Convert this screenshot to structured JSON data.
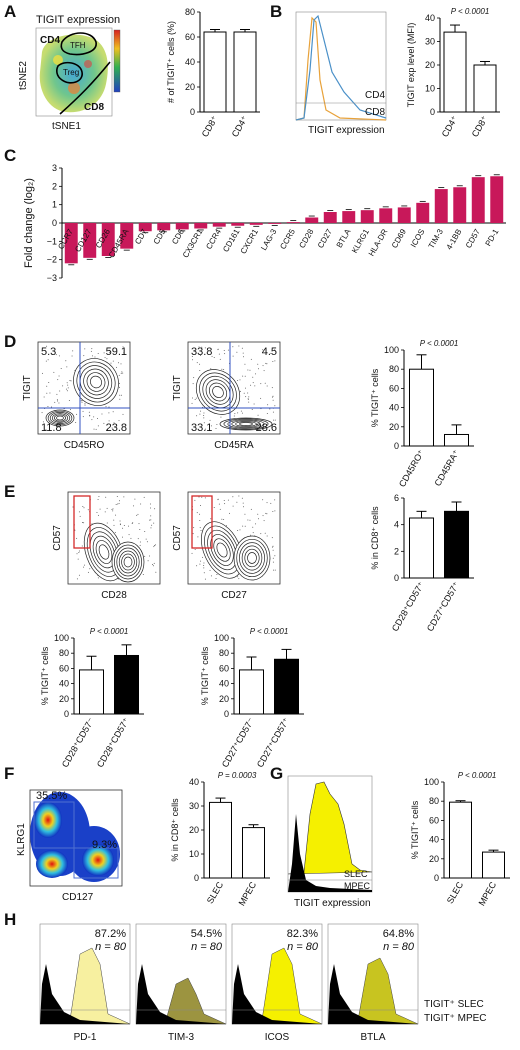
{
  "labels": {
    "A": "A",
    "B": "B",
    "C": "C",
    "D": "D",
    "E": "E",
    "F": "F",
    "G": "G",
    "H": "H"
  },
  "panelA": {
    "title": "TIGIT expression",
    "tsne_x": "tSNE1",
    "tsne_y": "tSNE2",
    "region_cd4": "CD4",
    "region_cd8": "CD8",
    "region_tfh": "TFH",
    "region_treg": "Treg",
    "chart_data": {
      "type": "bar",
      "categories": [
        "CD8⁺",
        "CD4⁺"
      ],
      "values": [
        64,
        64
      ],
      "errors": [
        2,
        2
      ],
      "ylabel": "# of TIGIT⁺ cells (%)",
      "yticks": [
        "0",
        "20",
        "40",
        "60",
        "80"
      ],
      "ylim": [
        0,
        80
      ]
    }
  },
  "panelB": {
    "hist_xlabel": "TIGIT expression",
    "legend_cd4": "CD4",
    "legend_cd8": "CD8",
    "colors": {
      "cd4": "#4a90c8",
      "cd8": "#e8a23a"
    },
    "chart_data": {
      "type": "bar",
      "categories": [
        "CD4⁺",
        "CD8⁺"
      ],
      "values": [
        34,
        20
      ],
      "errors": [
        3,
        1.5
      ],
      "ylabel": "TIGIT exp level (MFI)",
      "yticks": [
        "0",
        "10",
        "20",
        "30",
        "40"
      ],
      "ylim": [
        0,
        40
      ],
      "pvalue": "P < 0.0001"
    }
  },
  "panelC": {
    "color": "#c8185a",
    "chart_data": {
      "type": "bar",
      "categories": [
        "CCR7",
        "CD127",
        "CD26",
        "CD45RA",
        "CD7",
        "CD5",
        "CD6",
        "CX3CR1",
        "CCR4",
        "CD161",
        "CXCR1",
        "LAG-3",
        "CCR5",
        "CD28",
        "CD27",
        "BTLA",
        "KLRG1",
        "HLA-DR",
        "CD69",
        "ICOS",
        "TIM-3",
        "4-1BB",
        "CD57",
        "PD-1"
      ],
      "values": [
        -2.2,
        -1.9,
        -1.8,
        -1.4,
        -0.45,
        -0.4,
        -0.35,
        -0.3,
        -0.2,
        -0.15,
        -0.1,
        -0.05,
        0.05,
        0.3,
        0.6,
        0.65,
        0.7,
        0.8,
        0.85,
        1.1,
        1.85,
        1.95,
        2.5,
        2.55
      ],
      "ylabel": "Fold change (log₂)",
      "yticks": [
        "−3",
        "−2",
        "−1",
        "0",
        "1",
        "2",
        "3"
      ],
      "ylim": [
        -3,
        3
      ]
    }
  },
  "panelD": {
    "plot1": {
      "x": "CD45RO",
      "y": "TIGIT",
      "q_ul": "5.3",
      "q_ur": "59.1",
      "q_ll": "11.8",
      "q_lr": "23.8"
    },
    "plot2": {
      "x": "CD45RA",
      "y": "TIGIT",
      "q_ul": "33.8",
      "q_ur": "4.5",
      "q_ll": "33.1",
      "q_lr": "28.6"
    },
    "chart_data": {
      "type": "bar",
      "categories": [
        "CD45RO⁺",
        "CD45RA⁺"
      ],
      "values": [
        80,
        12
      ],
      "errors": [
        15,
        10
      ],
      "ylabel": "% TIGIT⁺ cells",
      "yticks": [
        "0",
        "20",
        "40",
        "60",
        "80",
        "100"
      ],
      "ylim": [
        0,
        100
      ],
      "pvalue": "P < 0.0001"
    }
  },
  "panelE": {
    "plot1": {
      "x": "CD28",
      "y": "CD57"
    },
    "plot2": {
      "x": "CD27",
      "y": "CD57"
    },
    "gate_color": "#d42a2a",
    "charts": [
      {
        "type": "bar",
        "categories": [
          "CD28⁺CD57⁺",
          "CD27⁺CD57⁺"
        ],
        "values": [
          4.5,
          5.0
        ],
        "errors": [
          0.5,
          0.7
        ],
        "ylabel": "% in CD8⁺ cells",
        "yticks": [
          "0",
          "2",
          "4",
          "6"
        ],
        "ylim": [
          0,
          6
        ],
        "pvalue": "",
        "fills": [
          "#ffffff",
          "#000000"
        ]
      },
      {
        "type": "bar",
        "categories": [
          "CD28⁺CD57⁻",
          "CD28⁺CD57⁺"
        ],
        "values": [
          58,
          77
        ],
        "errors": [
          18,
          14
        ],
        "ylabel": "% TIGIT⁺ cells",
        "yticks": [
          "0",
          "20",
          "40",
          "60",
          "80",
          "100"
        ],
        "ylim": [
          0,
          100
        ],
        "pvalue": "P < 0.0001",
        "fills": [
          "#ffffff",
          "#000000"
        ]
      },
      {
        "type": "bar",
        "categories": [
          "CD27⁺CD57⁻",
          "CD27⁺CD57⁺"
        ],
        "values": [
          58,
          72
        ],
        "errors": [
          17,
          13
        ],
        "ylabel": "% TIGIT⁺ cells",
        "yticks": [
          "0",
          "20",
          "40",
          "60",
          "80",
          "100"
        ],
        "ylim": [
          0,
          100
        ],
        "pvalue": "P < 0.0001",
        "fills": [
          "#ffffff",
          "#000000"
        ]
      }
    ]
  },
  "panelF": {
    "x": "CD127",
    "y": "KLRG1",
    "gate1": "35.5%",
    "gate2": "9.3%",
    "chart_data": {
      "type": "bar",
      "categories": [
        "SLEC",
        "MPEC"
      ],
      "values": [
        31.5,
        21
      ],
      "errors": [
        1.8,
        1.2
      ],
      "ylabel": "% in CD8⁺ cells",
      "yticks": [
        "0",
        "10",
        "20",
        "30",
        "40"
      ],
      "ylim": [
        0,
        40
      ],
      "pvalue": "P = 0.0003"
    }
  },
  "panelG": {
    "hist_xlabel": "TIGIT expression",
    "legend_slec": "SLEC",
    "legend_mpec": "MPEC",
    "chart_data": {
      "type": "bar",
      "categories": [
        "SLEC",
        "MPEC"
      ],
      "values": [
        79,
        27
      ],
      "errors": [
        1.5,
        2
      ],
      "ylabel": "% TIGIT⁺ cells",
      "yticks": [
        "0",
        "20",
        "40",
        "60",
        "80",
        "100"
      ],
      "ylim": [
        0,
        100
      ],
      "pvalue": "P < 0.0001"
    }
  },
  "panelH": {
    "hists": [
      {
        "marker": "PD-1",
        "pct": "87.2%",
        "n": "n = 80",
        "color": "#f7f0a0"
      },
      {
        "marker": "TIM-3",
        "pct": "54.5%",
        "n": "n = 80",
        "color": "#9c9440"
      },
      {
        "marker": "ICOS",
        "pct": "82.3%",
        "n": "n = 80",
        "color": "#f5f000"
      },
      {
        "marker": "BTLA",
        "pct": "64.8%",
        "n": "n = 80",
        "color": "#c8c420"
      }
    ],
    "legend_slec": "TIGIT⁺ SLEC",
    "legend_mpec": "TIGIT⁺ MPEC"
  }
}
